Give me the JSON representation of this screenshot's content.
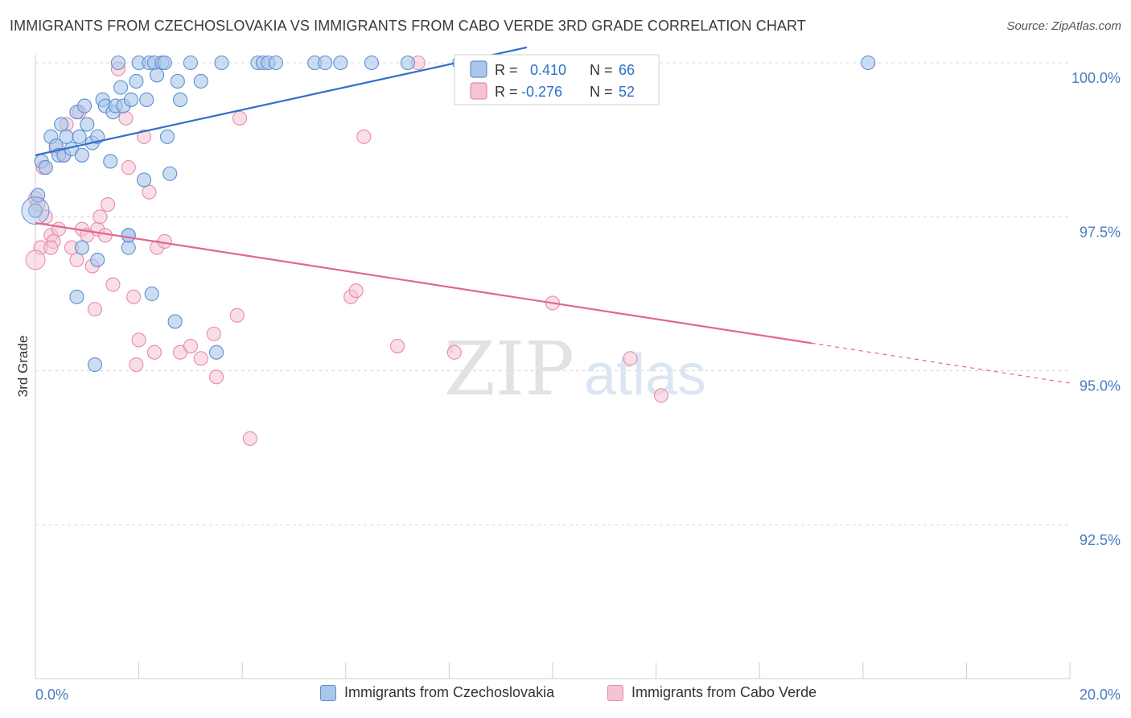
{
  "title": "IMMIGRANTS FROM CZECHOSLOVAKIA VS IMMIGRANTS FROM CABO VERDE 3RD GRADE CORRELATION CHART",
  "source": "Source: ZipAtlas.com",
  "watermark": {
    "zip": "ZIP",
    "atlas": "atlas"
  },
  "colors": {
    "blue_fill": "#aac6ea",
    "blue_stroke": "#5b8fd4",
    "blue_line": "#2f6fcc",
    "pink_fill": "#f6c3d4",
    "pink_stroke": "#e88aa8",
    "pink_line": "#e06890",
    "tick_text": "#4a7cc0",
    "grid": "#d8d8d8"
  },
  "legend": {
    "r_label": "R =",
    "n_label": "N =",
    "series1": {
      "r": "0.410",
      "n": "66"
    },
    "series2": {
      "r": "-0.276",
      "n": "52"
    }
  },
  "chart_data": {
    "type": "scatter",
    "xlabel": "",
    "ylabel": "3rd Grade",
    "xlim": [
      0.0,
      20.0
    ],
    "ylim": [
      90.0,
      100.3
    ],
    "x_tick_labels": [
      "0.0%",
      "20.0%"
    ],
    "y_ticks": [
      92.5,
      95.0,
      97.5,
      100.0
    ],
    "y_tick_labels": [
      "92.5%",
      "95.0%",
      "97.5%",
      "100.0%"
    ],
    "series": [
      {
        "name": "Immigrants from Czechoslovakia",
        "color": "blue",
        "r": 0.41,
        "n": 66,
        "trend": {
          "x": [
            0.0,
            9.5
          ],
          "y": [
            98.5,
            100.25
          ]
        },
        "points": [
          [
            0.0,
            97.6
          ],
          [
            0.05,
            97.85
          ],
          [
            0.12,
            98.4
          ],
          [
            0.2,
            98.3
          ],
          [
            0.3,
            98.8
          ],
          [
            0.4,
            98.65
          ],
          [
            0.45,
            98.5
          ],
          [
            0.5,
            99.0
          ],
          [
            0.55,
            98.5
          ],
          [
            0.6,
            98.8
          ],
          [
            0.7,
            98.6
          ],
          [
            0.8,
            99.2
          ],
          [
            0.85,
            98.8
          ],
          [
            0.9,
            98.5
          ],
          [
            0.95,
            99.3
          ],
          [
            1.0,
            99.0
          ],
          [
            1.1,
            98.7
          ],
          [
            1.2,
            98.8
          ],
          [
            1.3,
            99.4
          ],
          [
            1.35,
            99.3
          ],
          [
            1.45,
            98.4
          ],
          [
            1.5,
            99.2
          ],
          [
            1.55,
            99.3
          ],
          [
            1.6,
            100.0
          ],
          [
            1.65,
            99.6
          ],
          [
            1.7,
            99.3
          ],
          [
            1.85,
            99.4
          ],
          [
            1.95,
            99.7
          ],
          [
            2.0,
            100.0
          ],
          [
            2.1,
            98.1
          ],
          [
            2.15,
            99.4
          ],
          [
            2.2,
            100.0
          ],
          [
            2.3,
            100.0
          ],
          [
            2.35,
            99.8
          ],
          [
            2.45,
            100.0
          ],
          [
            2.5,
            100.0
          ],
          [
            2.55,
            98.8
          ],
          [
            2.6,
            98.2
          ],
          [
            2.75,
            99.7
          ],
          [
            2.8,
            99.4
          ],
          [
            3.0,
            100.0
          ],
          [
            3.2,
            99.7
          ],
          [
            3.6,
            100.0
          ],
          [
            4.3,
            100.0
          ],
          [
            4.4,
            100.0
          ],
          [
            4.5,
            100.0
          ],
          [
            4.65,
            100.0
          ],
          [
            5.4,
            100.0
          ],
          [
            5.6,
            100.0
          ],
          [
            5.9,
            100.0
          ],
          [
            6.5,
            100.0
          ],
          [
            7.2,
            100.0
          ],
          [
            8.2,
            100.0
          ],
          [
            8.5,
            100.0
          ],
          [
            9.0,
            100.0
          ],
          [
            16.1,
            100.0
          ],
          [
            1.8,
            97.0
          ],
          [
            1.8,
            97.2
          ],
          [
            0.9,
            97.0
          ],
          [
            1.2,
            96.8
          ],
          [
            0.8,
            96.2
          ],
          [
            2.25,
            96.25
          ],
          [
            2.7,
            95.8
          ],
          [
            3.5,
            95.3
          ],
          [
            1.15,
            95.1
          ],
          [
            1.8,
            97.2
          ]
        ]
      },
      {
        "name": "Immigrants from Cabo Verde",
        "color": "pink",
        "r": -0.276,
        "n": 52,
        "trend": {
          "x": [
            0.0,
            15.0
          ],
          "y": [
            97.4,
            95.45
          ]
        },
        "trend_dashed": {
          "x": [
            15.0,
            20.0
          ],
          "y": [
            95.45,
            94.8
          ]
        },
        "points": [
          [
            0.0,
            97.8
          ],
          [
            0.05,
            97.7
          ],
          [
            0.1,
            97.0
          ],
          [
            0.15,
            98.3
          ],
          [
            0.2,
            97.5
          ],
          [
            0.3,
            97.2
          ],
          [
            0.35,
            97.1
          ],
          [
            0.4,
            98.6
          ],
          [
            0.45,
            97.3
          ],
          [
            0.55,
            98.5
          ],
          [
            0.6,
            99.0
          ],
          [
            0.7,
            97.0
          ],
          [
            0.8,
            96.8
          ],
          [
            0.85,
            99.2
          ],
          [
            0.9,
            97.3
          ],
          [
            1.0,
            97.2
          ],
          [
            1.1,
            96.7
          ],
          [
            1.15,
            96.0
          ],
          [
            1.2,
            97.3
          ],
          [
            1.25,
            97.5
          ],
          [
            1.35,
            97.2
          ],
          [
            1.4,
            97.7
          ],
          [
            1.5,
            96.4
          ],
          [
            1.6,
            99.9
          ],
          [
            1.75,
            99.1
          ],
          [
            1.8,
            98.3
          ],
          [
            1.9,
            96.2
          ],
          [
            1.95,
            95.1
          ],
          [
            2.0,
            95.5
          ],
          [
            2.1,
            98.8
          ],
          [
            2.2,
            97.9
          ],
          [
            2.35,
            97.0
          ],
          [
            2.5,
            97.1
          ],
          [
            2.8,
            95.3
          ],
          [
            3.0,
            95.4
          ],
          [
            3.2,
            95.2
          ],
          [
            3.45,
            95.6
          ],
          [
            3.5,
            94.9
          ],
          [
            3.9,
            95.9
          ],
          [
            3.95,
            99.1
          ],
          [
            4.15,
            93.9
          ],
          [
            6.1,
            96.2
          ],
          [
            6.2,
            96.3
          ],
          [
            6.35,
            98.8
          ],
          [
            7.0,
            95.4
          ],
          [
            7.4,
            100.0
          ],
          [
            8.1,
            95.3
          ],
          [
            10.0,
            96.1
          ],
          [
            11.5,
            95.2
          ],
          [
            12.1,
            94.6
          ],
          [
            2.3,
            95.3
          ],
          [
            0.3,
            97.0
          ]
        ]
      }
    ]
  }
}
